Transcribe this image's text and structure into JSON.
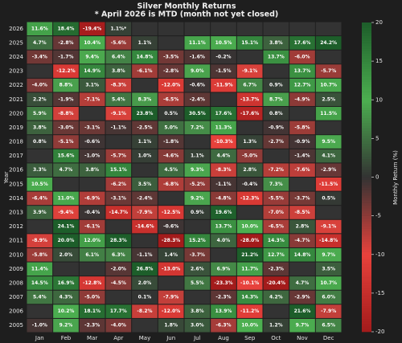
{
  "chart_data": {
    "type": "heatmap",
    "title": "Silver Monthly Returns",
    "subtitle": "* April 2026 is MTD (month not yet closed)",
    "y_label": "Year",
    "colorbar_label": "Monthly Return (%)",
    "x_categories": [
      "Jan",
      "Feb",
      "Mar",
      "Apr",
      "May",
      "Jun",
      "Jul",
      "Aug",
      "Sep",
      "Oct",
      "Nov",
      "Dec"
    ],
    "y_categories": [
      "2026",
      "2025",
      "2024",
      "2023",
      "2022",
      "2021",
      "2020",
      "2019",
      "2018",
      "2017",
      "2016",
      "2015",
      "2014",
      "2013",
      "2012",
      "2011",
      "2010",
      "2009",
      "2008",
      "2007",
      "2006",
      "2005"
    ],
    "values": [
      [
        11.6,
        18.4,
        -19.4,
        1.1,
        null,
        null,
        null,
        null,
        null,
        null,
        null,
        null
      ],
      [
        4.7,
        -2.8,
        10.4,
        -5.6,
        1.1,
        null,
        11.1,
        10.5,
        15.1,
        3.8,
        17.6,
        24.2
      ],
      [
        -3.4,
        -1.7,
        9.4,
        6.4,
        14.8,
        -3.5,
        -1.6,
        -0.2,
        null,
        13.7,
        -6.0,
        null
      ],
      [
        null,
        -12.2,
        14.9,
        3.8,
        -6.1,
        -2.8,
        9.0,
        -1.5,
        -9.1,
        null,
        13.7,
        -5.7
      ],
      [
        -4.0,
        8.8,
        3.1,
        -8.3,
        null,
        -12.0,
        -0.6,
        -11.9,
        6.7,
        0.9,
        12.7,
        10.7
      ],
      [
        2.2,
        -1.9,
        -7.1,
        5.4,
        8.3,
        -6.5,
        -2.4,
        null,
        -13.7,
        8.7,
        -4.9,
        2.5
      ],
      [
        5.9,
        -8.8,
        null,
        -9.1,
        23.8,
        0.5,
        30.5,
        17.6,
        -17.6,
        0.8,
        null,
        11.5
      ],
      [
        3.8,
        -3.0,
        -3.1,
        -1.1,
        -2.5,
        5.0,
        7.2,
        11.3,
        null,
        -0.9,
        -5.8,
        null
      ],
      [
        0.8,
        -5.1,
        -0.6,
        null,
        1.1,
        -1.8,
        null,
        -10.3,
        1.3,
        -2.7,
        -0.9,
        9.5
      ],
      [
        null,
        15.6,
        -1.0,
        -5.7,
        1.0,
        -4.6,
        1.1,
        4.4,
        -5.0,
        null,
        -1.4,
        4.1
      ],
      [
        3.3,
        4.7,
        3.8,
        15.1,
        null,
        4.5,
        9.3,
        -8.3,
        2.8,
        -7.2,
        -7.6,
        -2.9
      ],
      [
        10.5,
        null,
        null,
        -6.2,
        3.5,
        -6.8,
        -5.2,
        -1.1,
        -0.4,
        7.3,
        null,
        -11.5
      ],
      [
        -6.4,
        11.0,
        -6.9,
        -3.1,
        -2.4,
        null,
        9.2,
        -4.8,
        -12.3,
        -5.5,
        -3.7,
        0.5
      ],
      [
        3.9,
        -9.4,
        -0.4,
        -14.7,
        -7.9,
        -12.5,
        0.9,
        19.6,
        null,
        -7.0,
        -8.5,
        null
      ],
      [
        null,
        24.1,
        -6.1,
        null,
        -14.6,
        -0.6,
        null,
        13.7,
        10.0,
        -6.5,
        2.8,
        -9.1
      ],
      [
        -8.9,
        20.0,
        12.0,
        28.3,
        null,
        -28.3,
        15.2,
        4.0,
        -28.0,
        14.3,
        -4.7,
        -14.8
      ],
      [
        -5.8,
        2.0,
        6.1,
        6.3,
        -1.1,
        1.4,
        -3.7,
        null,
        21.2,
        12.7,
        14.8,
        9.7
      ],
      [
        11.4,
        null,
        null,
        -2.0,
        26.8,
        -13.0,
        2.6,
        6.9,
        11.7,
        -2.3,
        null,
        3.5
      ],
      [
        14.5,
        16.9,
        -12.8,
        -4.5,
        2.0,
        null,
        5.5,
        -23.3,
        -10.1,
        -20.4,
        4.7,
        10.7
      ],
      [
        5.4,
        4.3,
        -5.0,
        null,
        0.1,
        -7.9,
        null,
        -2.3,
        14.3,
        4.2,
        -2.9,
        6.0
      ],
      [
        null,
        10.2,
        18.1,
        17.7,
        -8.2,
        -12.0,
        3.8,
        13.9,
        -11.2,
        null,
        21.6,
        -7.9
      ],
      [
        -1.0,
        9.2,
        -2.3,
        -4.0,
        null,
        1.8,
        3.0,
        -6.3,
        10.0,
        1.2,
        9.7,
        6.5
      ]
    ],
    "value_labels": [
      [
        "11.6%",
        "18.4%",
        "-19.4%",
        "1.1%*",
        null,
        null,
        null,
        null,
        null,
        null,
        null,
        null
      ],
      [
        "4.7%",
        "-2.8%",
        "10.4%",
        "-5.6%",
        "1.1%",
        null,
        "11.1%",
        "10.5%",
        "15.1%",
        "3.8%",
        "17.6%",
        "24.2%"
      ],
      [
        "-3.4%",
        "-1.7%",
        "9.4%",
        "6.4%",
        "14.8%",
        "-3.5%",
        "-1.6%",
        "-0.2%",
        null,
        "13.7%",
        "-6.0%",
        null
      ],
      [
        null,
        "-12.2%",
        "14.9%",
        "3.8%",
        "-6.1%",
        "-2.8%",
        "9.0%",
        "-1.5%",
        "-9.1%",
        null,
        "13.7%",
        "-5.7%"
      ],
      [
        "-4.0%",
        "8.8%",
        "3.1%",
        "-8.3%",
        null,
        "-12.0%",
        "-0.6%",
        "-11.9%",
        "6.7%",
        "0.9%",
        "12.7%",
        "10.7%"
      ],
      [
        "2.2%",
        "-1.9%",
        "-7.1%",
        "5.4%",
        "8.3%",
        "-6.5%",
        "-2.4%",
        null,
        "-13.7%",
        "8.7%",
        "-4.9%",
        "2.5%"
      ],
      [
        "5.9%",
        "-8.8%",
        null,
        "-9.1%",
        "23.8%",
        "0.5%",
        "30.5%",
        "17.6%",
        "-17.6%",
        "0.8%",
        null,
        "11.5%"
      ],
      [
        "3.8%",
        "-3.0%",
        "-3.1%",
        "-1.1%",
        "-2.5%",
        "5.0%",
        "7.2%",
        "11.3%",
        null,
        "-0.9%",
        "-5.8%",
        null
      ],
      [
        "0.8%",
        "-5.1%",
        "-0.6%",
        null,
        "1.1%",
        "-1.8%",
        null,
        "-10.3%",
        "1.3%",
        "-2.7%",
        "-0.9%",
        "9.5%"
      ],
      [
        null,
        "15.6%",
        "-1.0%",
        "-5.7%",
        "1.0%",
        "-4.6%",
        "1.1%",
        "4.4%",
        "-5.0%",
        null,
        "-1.4%",
        "4.1%"
      ],
      [
        "3.3%",
        "4.7%",
        "3.8%",
        "15.1%",
        null,
        "4.5%",
        "9.3%",
        "-8.3%",
        "2.8%",
        "-7.2%",
        "-7.6%",
        "-2.9%"
      ],
      [
        "10.5%",
        null,
        null,
        "-6.2%",
        "3.5%",
        "-6.8%",
        "-5.2%",
        "-1.1%",
        "-0.4%",
        "7.3%",
        null,
        "-11.5%"
      ],
      [
        "-6.4%",
        "11.0%",
        "-6.9%",
        "-3.1%",
        "-2.4%",
        null,
        "9.2%",
        "-4.8%",
        "-12.3%",
        "-5.5%",
        "-3.7%",
        "0.5%"
      ],
      [
        "3.9%",
        "-9.4%",
        "-0.4%",
        "-14.7%",
        "-7.9%",
        "-12.5%",
        "0.9%",
        "19.6%",
        null,
        "-7.0%",
        "-8.5%",
        null
      ],
      [
        null,
        "24.1%",
        "-6.1%",
        null,
        "-14.6%",
        "-0.6%",
        null,
        "13.7%",
        "10.0%",
        "-6.5%",
        "2.8%",
        "-9.1%"
      ],
      [
        "-8.9%",
        "20.0%",
        "12.0%",
        "28.3%",
        null,
        "-28.3%",
        "15.2%",
        "4.0%",
        "-28.0%",
        "14.3%",
        "-4.7%",
        "-14.8%"
      ],
      [
        "-5.8%",
        "2.0%",
        "6.1%",
        "6.3%",
        "-1.1%",
        "1.4%",
        "-3.7%",
        null,
        "21.2%",
        "12.7%",
        "14.8%",
        "9.7%"
      ],
      [
        "11.4%",
        null,
        null,
        "-2.0%",
        "26.8%",
        "-13.0%",
        "2.6%",
        "6.9%",
        "11.7%",
        "-2.3%",
        null,
        "3.5%"
      ],
      [
        "14.5%",
        "16.9%",
        "-12.8%",
        "-4.5%",
        "2.0%",
        null,
        "5.5%",
        "-23.3%",
        "-10.1%",
        "-20.4%",
        "4.7%",
        "10.7%"
      ],
      [
        "5.4%",
        "4.3%",
        "-5.0%",
        null,
        "0.1%",
        "-7.9%",
        null,
        "-2.3%",
        "14.3%",
        "4.2%",
        "-2.9%",
        "6.0%"
      ],
      [
        null,
        "10.2%",
        "18.1%",
        "17.7%",
        "-8.2%",
        "-12.0%",
        "3.8%",
        "13.9%",
        "-11.2%",
        null,
        "21.6%",
        "-7.9%"
      ],
      [
        "-1.0%",
        "9.2%",
        "-2.3%",
        "-4.0%",
        null,
        "1.8%",
        "3.0%",
        "-6.3%",
        "10.0%",
        "1.2%",
        "9.7%",
        "6.5%"
      ]
    ],
    "clim": [
      -20,
      20
    ],
    "cticks": [
      -20,
      -15,
      -10,
      -5,
      0,
      5,
      10,
      15,
      20
    ],
    "colormap": [
      "#a31b1b",
      "#e8423c",
      "#333333",
      "#4caf50",
      "#1d5e2a"
    ],
    "missing_color": "#333333"
  }
}
